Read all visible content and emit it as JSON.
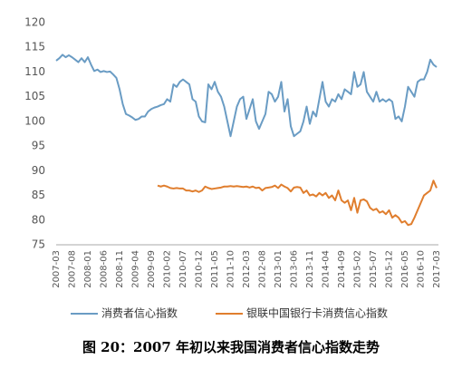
{
  "chart_data": {
    "type": "line",
    "caption": "图 20：2007 年初以来我国消费者信心指数走势",
    "categories": [
      "2007-03",
      null,
      null,
      null,
      null,
      "2007-08",
      null,
      null,
      null,
      null,
      "2008-01",
      null,
      null,
      null,
      null,
      "2008-06",
      null,
      null,
      null,
      null,
      "2008-11",
      null,
      null,
      null,
      null,
      "2009-04",
      null,
      null,
      null,
      null,
      "2009-09",
      null,
      null,
      null,
      null,
      "2010-02",
      null,
      null,
      null,
      null,
      "2010-07",
      null,
      null,
      null,
      null,
      "2010-12",
      null,
      null,
      null,
      null,
      "2011-05",
      null,
      null,
      null,
      null,
      "2011-10",
      null,
      null,
      null,
      null,
      "2012-03",
      null,
      null,
      null,
      null,
      "2012-08",
      null,
      null,
      null,
      null,
      "2013-01",
      null,
      null,
      null,
      null,
      "2013-06",
      null,
      null,
      null,
      null,
      "2013-11",
      null,
      null,
      null,
      null,
      "2014-04",
      null,
      null,
      null,
      null,
      "2014-09",
      null,
      null,
      null,
      null,
      "2015-02",
      null,
      null,
      null,
      null,
      "2015-07",
      null,
      null,
      null,
      null,
      "2015-12",
      null,
      null,
      null,
      null,
      "2016-05",
      null,
      null,
      null,
      null,
      "2016-10",
      null,
      null,
      null,
      null,
      "2017-03"
    ],
    "series": [
      {
        "name": "消费者信心指数",
        "color": "#6a9cc4",
        "values": [
          112.3,
          112.8,
          113.5,
          113.0,
          113.4,
          113.0,
          112.5,
          112.0,
          112.8,
          112.0,
          113.0,
          111.5,
          110.2,
          110.5,
          110.0,
          110.2,
          110.0,
          110.1,
          109.5,
          108.8,
          106.5,
          103.5,
          101.5,
          101.2,
          100.8,
          100.3,
          100.5,
          101.0,
          101.0,
          102.0,
          102.5,
          102.8,
          103.0,
          103.3,
          103.5,
          104.5,
          104.0,
          107.5,
          107.0,
          108.0,
          108.5,
          108.0,
          107.5,
          104.5,
          104.0,
          101.0,
          100.0,
          99.8,
          107.5,
          106.5,
          108.0,
          106.0,
          105.0,
          103.0,
          100.0,
          97.0,
          100.0,
          103.0,
          104.5,
          105.0,
          100.5,
          102.5,
          104.5,
          100.0,
          98.5,
          100.0,
          101.5,
          106.0,
          105.5,
          104.0,
          105.0,
          108.0,
          102.0,
          104.5,
          99.0,
          97.0,
          97.5,
          98.0,
          100.0,
          103.0,
          99.5,
          102.0,
          101.0,
          104.5,
          108.0,
          104.0,
          103.0,
          104.5,
          104.0,
          105.5,
          104.5,
          106.5,
          106.0,
          105.5,
          110.0,
          107.0,
          107.5,
          110.0,
          106.0,
          105.0,
          104.0,
          106.0,
          104.0,
          104.5,
          104.0,
          104.5,
          104.0,
          100.5,
          101.0,
          100.0,
          103.0,
          107.0,
          106.0,
          105.0,
          108.0,
          108.5,
          108.5,
          110.0,
          112.5,
          111.5,
          111.0
        ]
      },
      {
        "name": "银联中国银行卡消费信心指数",
        "color": "#e07e2e",
        "values": [
          null,
          null,
          null,
          null,
          null,
          null,
          null,
          null,
          null,
          null,
          null,
          null,
          null,
          null,
          null,
          null,
          null,
          null,
          null,
          null,
          null,
          null,
          null,
          null,
          null,
          null,
          null,
          null,
          null,
          null,
          null,
          null,
          87.0,
          86.8,
          87.0,
          86.8,
          86.5,
          86.4,
          86.5,
          86.4,
          86.4,
          86.0,
          86.0,
          85.8,
          86.0,
          85.7,
          86.0,
          86.8,
          86.5,
          86.3,
          86.4,
          86.5,
          86.6,
          86.8,
          86.8,
          86.9,
          86.8,
          86.9,
          86.8,
          86.7,
          86.8,
          86.6,
          86.8,
          86.5,
          86.6,
          86.0,
          86.5,
          86.6,
          86.7,
          87.0,
          86.5,
          87.2,
          86.8,
          86.5,
          85.8,
          86.6,
          86.7,
          86.6,
          85.5,
          86.0,
          85.0,
          85.2,
          84.8,
          85.5,
          85.0,
          85.5,
          84.5,
          85.0,
          84.0,
          86.0,
          84.0,
          83.5,
          84.0,
          82.0,
          84.5,
          81.5,
          84.0,
          84.2,
          83.8,
          82.5,
          82.0,
          82.3,
          81.5,
          81.8,
          81.2,
          82.0,
          80.5,
          81.0,
          80.5,
          79.5,
          79.8,
          79.0,
          79.2,
          80.5,
          82.0,
          83.5,
          85.0,
          85.5,
          86.0,
          88.0,
          86.5
        ]
      }
    ],
    "ylim": [
      75,
      120
    ],
    "yticks": [
      75,
      80,
      85,
      90,
      95,
      100,
      105,
      110,
      115,
      120
    ],
    "grid": false
  }
}
